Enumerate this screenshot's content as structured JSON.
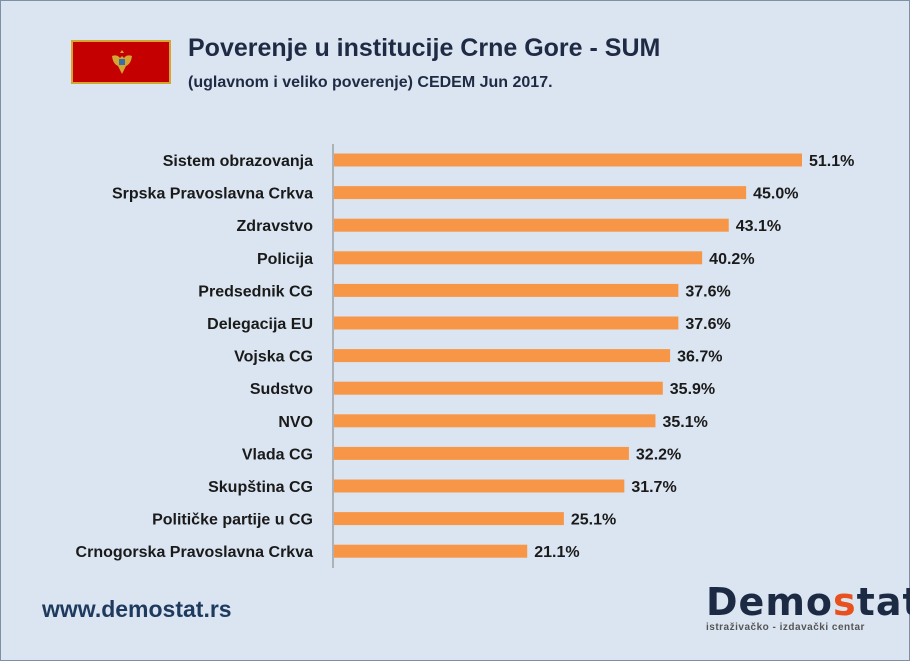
{
  "header": {
    "title": "Poverenje u institucije Crne Gore - SUM",
    "subtitle": "(uglavnom i veliko poverenje) CEDEM Jun 2017.",
    "flag": "montenegro-flag"
  },
  "footer": {
    "url": "www.demostat.rs",
    "logo_prefix": "Demo",
    "logo_accent": "s",
    "logo_suffix": "tat",
    "logo_tagline": "istraživačko - izdavački  centar"
  },
  "colors": {
    "bar": "#f79646",
    "background": "#dbe5f1",
    "axis": "#7f7f7f"
  },
  "chart_data": {
    "type": "bar",
    "orientation": "horizontal",
    "title": "Poverenje u institucije Crne Gore - SUM",
    "categories": [
      "Sistem obrazovanja",
      "Srpska Pravoslavna Crkva",
      "Zdravstvo",
      "Policija",
      "Predsednik CG",
      "Delegacija EU",
      "Vojska CG",
      "Sudstvo",
      "NVO",
      "Vlada CG",
      "Skupština CG",
      "Političke partije u CG",
      "Crnogorska Pravoslavna Crkva"
    ],
    "values": [
      51.1,
      45.0,
      43.1,
      40.2,
      37.6,
      37.6,
      36.7,
      35.9,
      35.1,
      32.2,
      31.7,
      25.1,
      21.1
    ],
    "value_labels": [
      "51.1%",
      "45.0%",
      "43.1%",
      "40.2%",
      "37.6%",
      "37.6%",
      "36.7%",
      "35.9%",
      "35.1%",
      "32.2%",
      "31.7%",
      "25.1%",
      "21.1%"
    ],
    "xlim": [
      0,
      51.1
    ],
    "grid": false,
    "legend": "none"
  }
}
